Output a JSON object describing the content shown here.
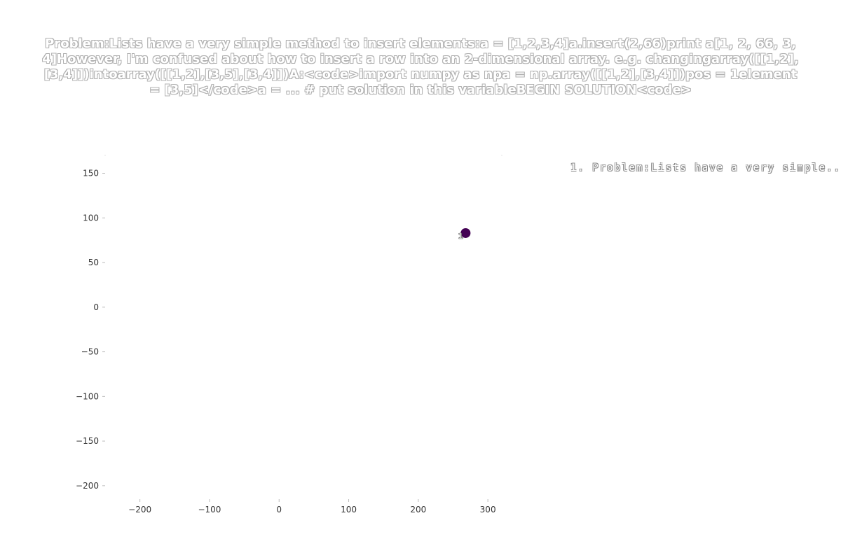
{
  "chart_data": {
    "type": "scatter",
    "title": "Problem:Lists have a very simple method to insert elements:a = [1,2,3,4]a.insert(2,66)print a[1, 2, 66, 3, 4]However, I'm confused about how to insert a row into an 2-dimensional array. e.g. changingarray([[1,2],[3,4]])intoarray([[1,2],[3,5],[3,4]])A:<code>import numpy as npa = np.array([[1,2],[3,4]])pos = 1element = [3,5]</code>a = ... # put solution in this variableBEGIN SOLUTION<code>",
    "xlabel": "",
    "ylabel": "",
    "xlim": [
      -250,
      320
    ],
    "ylim": [
      -215,
      170
    ],
    "x_ticks": [
      -200,
      -100,
      0,
      100,
      200,
      300
    ],
    "y_ticks": [
      150,
      100,
      50,
      0,
      -50,
      -100,
      -150,
      -200
    ],
    "x_tick_labels": [
      "−200",
      "−100",
      "0",
      "100",
      "200",
      "300"
    ],
    "y_tick_labels": [
      "150",
      "100",
      "50",
      "0",
      "−50",
      "−100",
      "−150",
      "−200"
    ],
    "points": [
      {
        "x": 268,
        "y": 83,
        "label": "1",
        "color": "#440154"
      }
    ],
    "legend": {
      "placement": "top-right",
      "entries": [
        "1. Problem:Lists have a very simple..."
      ]
    },
    "grid": false
  }
}
